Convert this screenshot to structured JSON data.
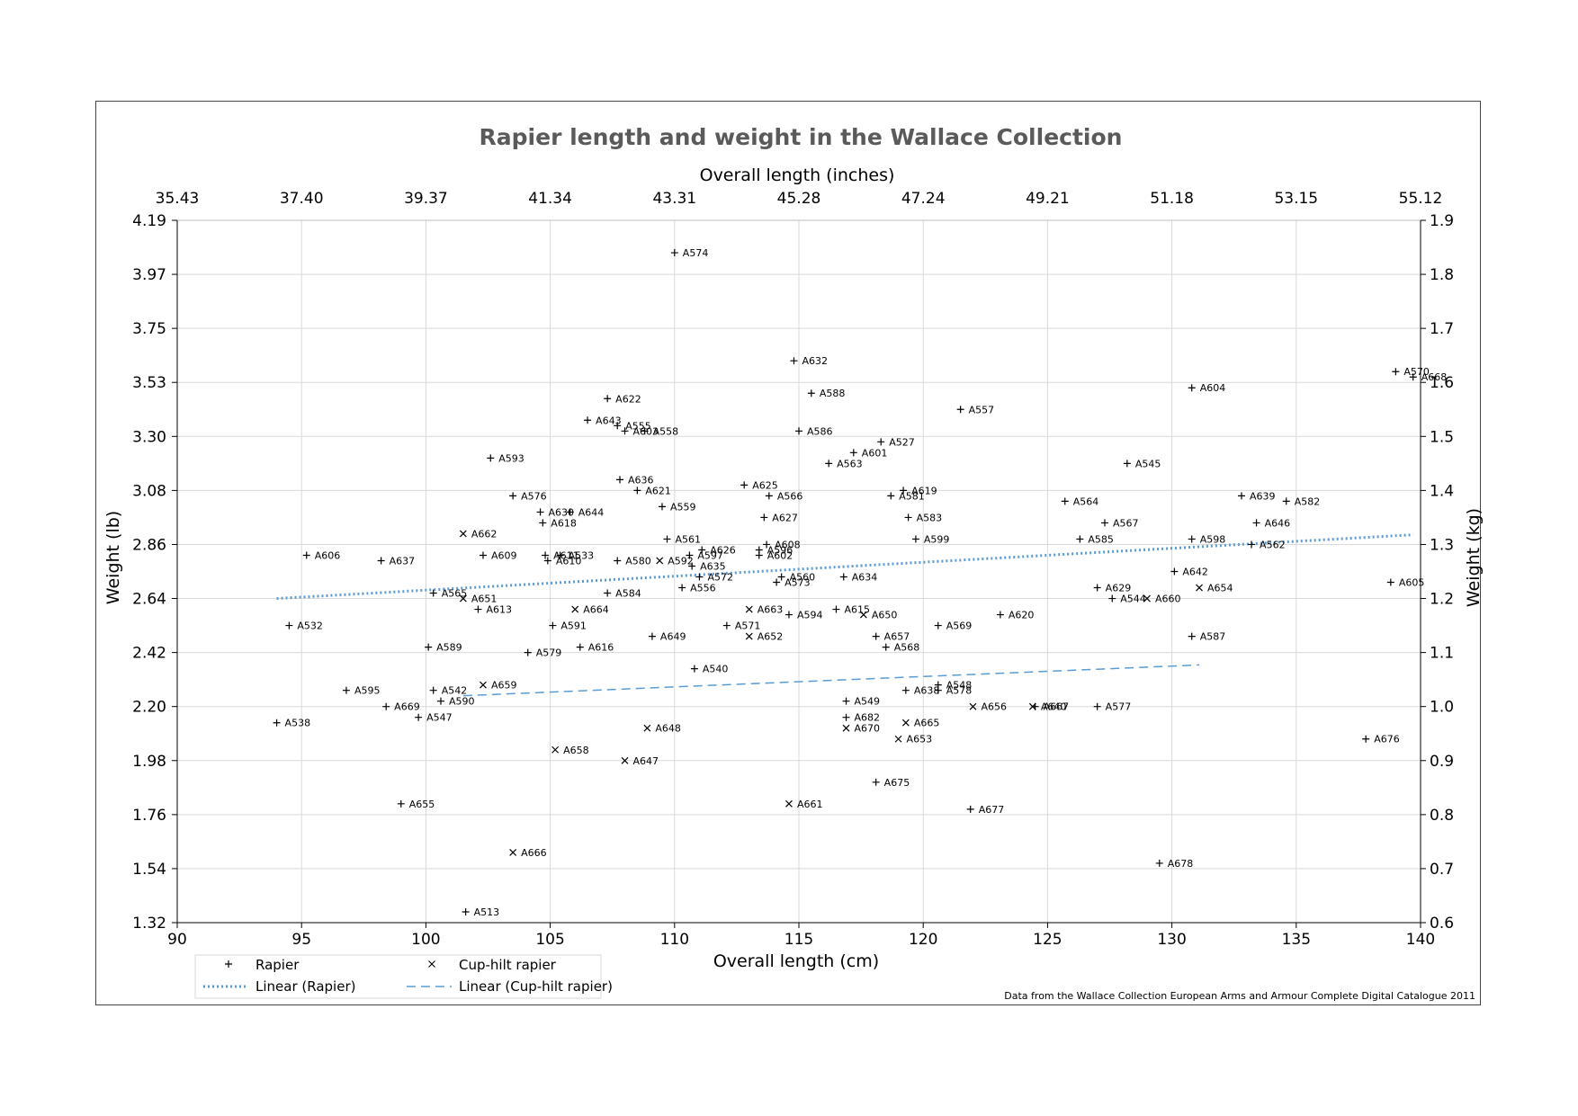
{
  "chart_data": {
    "type": "scatter",
    "title": "Rapier length and weight in the Wallace Collection",
    "xlabel": "Overall length (cm)",
    "ylabel": "Weight (lb)",
    "x2label": "Overall length (inches)",
    "y2label": "Weight (kg)",
    "xlim": [
      90,
      140
    ],
    "ylim": [
      0.6,
      1.9
    ],
    "x_ticks": [
      "90",
      "95",
      "100",
      "105",
      "110",
      "115",
      "120",
      "125",
      "130",
      "135",
      "140"
    ],
    "x2_ticks": [
      "35.43",
      "37.40",
      "39.37",
      "41.34",
      "43.31",
      "45.28",
      "47.24",
      "49.21",
      "51.18",
      "53.15",
      "55.12"
    ],
    "y_ticks_lb": [
      "1.32",
      "1.54",
      "1.76",
      "1.98",
      "2.20",
      "2.42",
      "2.64",
      "2.86",
      "3.08",
      "3.30",
      "3.53",
      "3.75",
      "3.97",
      "4.19"
    ],
    "y_ticks_kg": [
      "0.6",
      "0.7",
      "0.8",
      "0.9",
      "1.0",
      "1.1",
      "1.2",
      "1.3",
      "1.4",
      "1.5",
      "1.6",
      "1.7",
      "1.8",
      "1.9"
    ],
    "grid": true,
    "legend_position": "bottom-left",
    "series": [
      {
        "name": "Rapier",
        "marker": "plus",
        "points": [
          {
            "label": "A574",
            "x": 110.0,
            "y": 1.84
          },
          {
            "label": "A632",
            "x": 114.8,
            "y": 1.64
          },
          {
            "label": "A570",
            "x": 139.0,
            "y": 1.62
          },
          {
            "label": "A668",
            "x": 139.7,
            "y": 1.61
          },
          {
            "label": "A604",
            "x": 130.8,
            "y": 1.59
          },
          {
            "label": "A588",
            "x": 115.5,
            "y": 1.58
          },
          {
            "label": "A622",
            "x": 107.3,
            "y": 1.57
          },
          {
            "label": "A557",
            "x": 121.5,
            "y": 1.55
          },
          {
            "label": "A643",
            "x": 106.5,
            "y": 1.53
          },
          {
            "label": "A555",
            "x": 107.7,
            "y": 1.52
          },
          {
            "label": "A603",
            "x": 108.0,
            "y": 1.51
          },
          {
            "label": "A558",
            "x": 108.8,
            "y": 1.51
          },
          {
            "label": "A586",
            "x": 115.0,
            "y": 1.51
          },
          {
            "label": "A527",
            "x": 118.3,
            "y": 1.49
          },
          {
            "label": "A601",
            "x": 117.2,
            "y": 1.47
          },
          {
            "label": "A593",
            "x": 102.6,
            "y": 1.46
          },
          {
            "label": "A563",
            "x": 116.2,
            "y": 1.45
          },
          {
            "label": "A545",
            "x": 128.2,
            "y": 1.45
          },
          {
            "label": "A636",
            "x": 107.8,
            "y": 1.42
          },
          {
            "label": "A625",
            "x": 112.8,
            "y": 1.41
          },
          {
            "label": "A621",
            "x": 108.5,
            "y": 1.4
          },
          {
            "label": "A619",
            "x": 119.2,
            "y": 1.4
          },
          {
            "label": "A576",
            "x": 103.5,
            "y": 1.39
          },
          {
            "label": "A566",
            "x": 113.8,
            "y": 1.39
          },
          {
            "label": "A581",
            "x": 118.7,
            "y": 1.39
          },
          {
            "label": "A639",
            "x": 132.8,
            "y": 1.39
          },
          {
            "label": "A564",
            "x": 125.7,
            "y": 1.38
          },
          {
            "label": "A582",
            "x": 134.6,
            "y": 1.38
          },
          {
            "label": "A559",
            "x": 109.5,
            "y": 1.37
          },
          {
            "label": "A630",
            "x": 104.6,
            "y": 1.36
          },
          {
            "label": "A644",
            "x": 105.8,
            "y": 1.36
          },
          {
            "label": "A618",
            "x": 104.7,
            "y": 1.34
          },
          {
            "label": "A627",
            "x": 113.6,
            "y": 1.35
          },
          {
            "label": "A583",
            "x": 119.4,
            "y": 1.35
          },
          {
            "label": "A567",
            "x": 127.3,
            "y": 1.34
          },
          {
            "label": "A646",
            "x": 133.4,
            "y": 1.34
          },
          {
            "label": "A561",
            "x": 109.7,
            "y": 1.31
          },
          {
            "label": "A599",
            "x": 119.7,
            "y": 1.31
          },
          {
            "label": "A585",
            "x": 126.3,
            "y": 1.31
          },
          {
            "label": "A598",
            "x": 130.8,
            "y": 1.31
          },
          {
            "label": "A562",
            "x": 133.2,
            "y": 1.3
          },
          {
            "label": "A608",
            "x": 113.7,
            "y": 1.3
          },
          {
            "label": "A626",
            "x": 111.1,
            "y": 1.29
          },
          {
            "label": "A596",
            "x": 113.4,
            "y": 1.29
          },
          {
            "label": "A602",
            "x": 113.4,
            "y": 1.28
          },
          {
            "label": "A611",
            "x": 104.8,
            "y": 1.28
          },
          {
            "label": "A533",
            "x": 105.4,
            "y": 1.28
          },
          {
            "label": "A606",
            "x": 95.2,
            "y": 1.28
          },
          {
            "label": "A609",
            "x": 102.3,
            "y": 1.28
          },
          {
            "label": "A597",
            "x": 110.6,
            "y": 1.28
          },
          {
            "label": "A637",
            "x": 98.2,
            "y": 1.27
          },
          {
            "label": "A580",
            "x": 107.7,
            "y": 1.27
          },
          {
            "label": "A610",
            "x": 104.9,
            "y": 1.27
          },
          {
            "label": "A635",
            "x": 110.7,
            "y": 1.26
          },
          {
            "label": "A572",
            "x": 111.0,
            "y": 1.24
          },
          {
            "label": "A560",
            "x": 114.3,
            "y": 1.24
          },
          {
            "label": "A573",
            "x": 114.1,
            "y": 1.23
          },
          {
            "label": "A634",
            "x": 116.8,
            "y": 1.24
          },
          {
            "label": "A642",
            "x": 130.1,
            "y": 1.25
          },
          {
            "label": "A605",
            "x": 138.8,
            "y": 1.23
          },
          {
            "label": "A556",
            "x": 110.3,
            "y": 1.22
          },
          {
            "label": "A629",
            "x": 127.0,
            "y": 1.22
          },
          {
            "label": "A584",
            "x": 107.3,
            "y": 1.21
          },
          {
            "label": "A565",
            "x": 100.3,
            "y": 1.21
          },
          {
            "label": "A544",
            "x": 127.6,
            "y": 1.2
          },
          {
            "label": "A613",
            "x": 102.1,
            "y": 1.18
          },
          {
            "label": "A615",
            "x": 116.5,
            "y": 1.18
          },
          {
            "label": "A620",
            "x": 123.1,
            "y": 1.17
          },
          {
            "label": "A594",
            "x": 114.6,
            "y": 1.17
          },
          {
            "label": "A532",
            "x": 94.5,
            "y": 1.15
          },
          {
            "label": "A591",
            "x": 105.1,
            "y": 1.15
          },
          {
            "label": "A571",
            "x": 112.1,
            "y": 1.15
          },
          {
            "label": "A569",
            "x": 120.6,
            "y": 1.15
          },
          {
            "label": "A649",
            "x": 109.1,
            "y": 1.13
          },
          {
            "label": "A657",
            "x": 118.1,
            "y": 1.13
          },
          {
            "label": "A587",
            "x": 130.8,
            "y": 1.13
          },
          {
            "label": "A589",
            "x": 100.1,
            "y": 1.11
          },
          {
            "label": "A616",
            "x": 106.2,
            "y": 1.11
          },
          {
            "label": "A568",
            "x": 118.5,
            "y": 1.11
          },
          {
            "label": "A579",
            "x": 104.1,
            "y": 1.1
          },
          {
            "label": "A540",
            "x": 110.8,
            "y": 1.07
          },
          {
            "label": "A548",
            "x": 120.6,
            "y": 1.04
          },
          {
            "label": "A578",
            "x": 120.6,
            "y": 1.03
          },
          {
            "label": "A638",
            "x": 119.3,
            "y": 1.03
          },
          {
            "label": "A595",
            "x": 96.8,
            "y": 1.03
          },
          {
            "label": "A542",
            "x": 100.3,
            "y": 1.03
          },
          {
            "label": "A590",
            "x": 100.6,
            "y": 1.01
          },
          {
            "label": "A549",
            "x": 116.9,
            "y": 1.01
          },
          {
            "label": "A669",
            "x": 98.4,
            "y": 1.0
          },
          {
            "label": "A667",
            "x": 124.5,
            "y": 1.0
          },
          {
            "label": "A577",
            "x": 127.0,
            "y": 1.0
          },
          {
            "label": "A547",
            "x": 99.7,
            "y": 0.98
          },
          {
            "label": "A682",
            "x": 116.9,
            "y": 0.98
          },
          {
            "label": "A538",
            "x": 94.0,
            "y": 0.97
          },
          {
            "label": "A676",
            "x": 137.8,
            "y": 0.94
          },
          {
            "label": "A675",
            "x": 118.1,
            "y": 0.86
          },
          {
            "label": "A655",
            "x": 99.0,
            "y": 0.82
          },
          {
            "label": "A677",
            "x": 121.9,
            "y": 0.81
          },
          {
            "label": "A678",
            "x": 129.5,
            "y": 0.71
          },
          {
            "label": "A513",
            "x": 101.6,
            "y": 0.62
          }
        ]
      },
      {
        "name": "Cup-hilt rapier",
        "marker": "cross",
        "points": [
          {
            "label": "A662",
            "x": 101.5,
            "y": 1.32
          },
          {
            "label": "A592",
            "x": 109.4,
            "y": 1.27
          },
          {
            "label": "A654",
            "x": 131.1,
            "y": 1.22
          },
          {
            "label": "A651",
            "x": 101.5,
            "y": 1.2
          },
          {
            "label": "A660",
            "x": 129.0,
            "y": 1.2
          },
          {
            "label": "A664",
            "x": 106.0,
            "y": 1.18
          },
          {
            "label": "A663",
            "x": 113.0,
            "y": 1.18
          },
          {
            "label": "A650",
            "x": 117.6,
            "y": 1.17
          },
          {
            "label": "A652",
            "x": 113.0,
            "y": 1.13
          },
          {
            "label": "A659",
            "x": 102.3,
            "y": 1.04
          },
          {
            "label": "A656",
            "x": 122.0,
            "y": 1.0
          },
          {
            "label": "A640",
            "x": 124.4,
            "y": 1.0
          },
          {
            "label": "A665",
            "x": 119.3,
            "y": 0.97
          },
          {
            "label": "A648",
            "x": 108.9,
            "y": 0.96
          },
          {
            "label": "A670",
            "x": 116.9,
            "y": 0.96
          },
          {
            "label": "A653",
            "x": 119.0,
            "y": 0.94
          },
          {
            "label": "A658",
            "x": 105.2,
            "y": 0.92
          },
          {
            "label": "A647",
            "x": 108.0,
            "y": 0.9
          },
          {
            "label": "A661",
            "x": 114.6,
            "y": 0.82
          },
          {
            "label": "A666",
            "x": 103.5,
            "y": 0.73
          }
        ]
      }
    ],
    "trendlines": [
      {
        "name": "Linear (Rapier)",
        "style": "dotted",
        "x": [
          94.0,
          139.7
        ],
        "y": [
          1.2,
          1.318
        ]
      },
      {
        "name": "Linear (Cup-hilt rapier)",
        "style": "dashed",
        "x": [
          101.5,
          131.1
        ],
        "y": [
          1.02,
          1.077
        ]
      }
    ],
    "colors": {
      "trend": "#5b9bd5",
      "grid": "#d9d9d9",
      "marker": "#000000",
      "title": "#5a5a5a"
    },
    "source_note": "Data from the Wallace Collection European Arms and Armour Complete Digital Catalogue 2011"
  }
}
